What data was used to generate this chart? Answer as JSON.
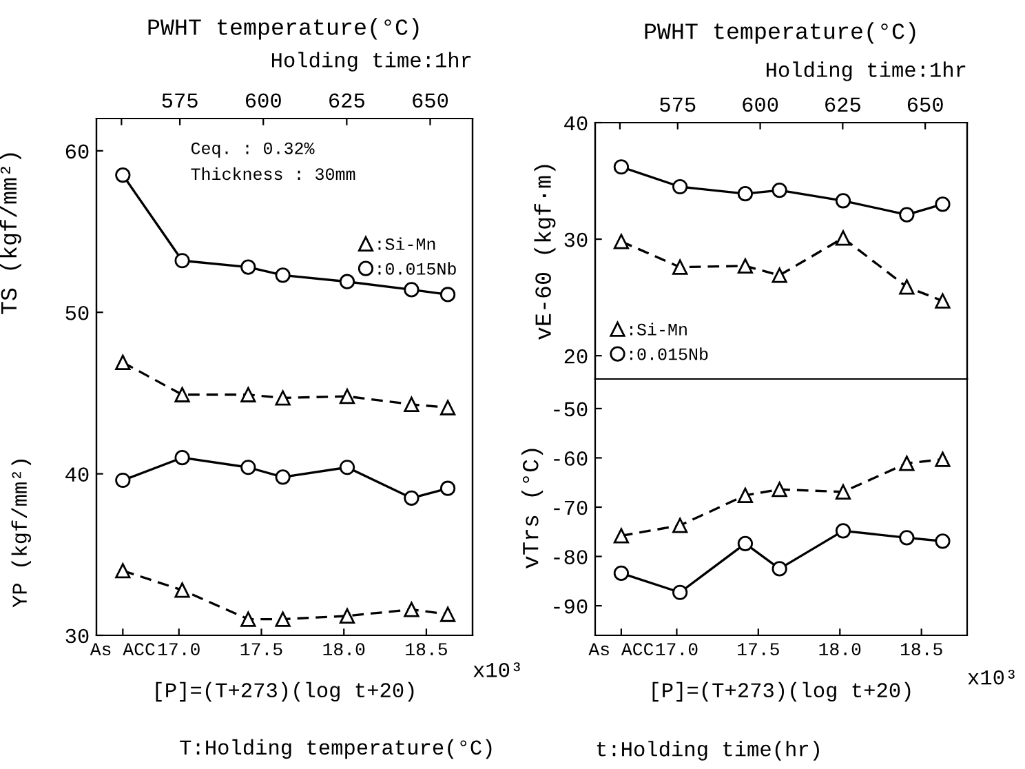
{
  "chart_data": [
    {
      "type": "line",
      "x": [
        16.66,
        17.02,
        17.42,
        17.63,
        18.02,
        18.41,
        18.63
      ],
      "xlim": [
        16.5,
        18.78
      ],
      "xticks": [
        {
          "value": 16.66,
          "label": "As ACC"
        },
        {
          "value": 17,
          "label": "17.0"
        },
        {
          "value": 17.5,
          "label": "17.5"
        },
        {
          "value": 18,
          "label": "18.0"
        },
        {
          "value": 18.5,
          "label": "18.5"
        }
      ],
      "x2lim": [
        550,
        662.7
      ],
      "x2ticks": [
        {
          "value": 557.5,
          "label": null
        },
        575,
        600,
        625,
        650
      ],
      "x2label": "PWHT temperature(°C)",
      "xlabel": "[P]=(T+273)(log t+20)",
      "ylabel": "TS (kgf/mm²)",
      "ylim": [
        30,
        62
      ],
      "yticks": [
        30,
        40,
        50,
        60
      ],
      "legend": "top right",
      "grid": false,
      "annotations": [
        "Ceq. : 0.32%",
        "Thickness : 30mm",
        "YP (kgf/mm²)",
        "Holding time:1hr",
        "x10³",
        "T:Holding temperature(°C)"
      ],
      "series": [
        {
          "name": ":Si-Mn",
          "color": "#000000",
          "marker": "triangle",
          "line_style": "dashed",
          "values": [
            46.9,
            44.9,
            44.9,
            44.7,
            44.8,
            44.3,
            44.1
          ]
        },
        {
          "name": ":0.015Nb",
          "color": "#000000",
          "marker": "circle",
          "line_style": "solid",
          "values": [
            58.5,
            53.2,
            52.8,
            52.3,
            51.9,
            51.4,
            51.1
          ]
        },
        {
          "color": "#000000",
          "marker": "circle",
          "line_style": "solid",
          "values": [
            39.6,
            41.0,
            40.4,
            39.8,
            40.4,
            38.5,
            39.1
          ]
        },
        {
          "color": "#000000",
          "marker": "triangle",
          "line_style": "dashed",
          "values": [
            34.0,
            32.8,
            31.0,
            31.0,
            31.2,
            31.6,
            31.3
          ]
        }
      ]
    },
    {
      "type": "line",
      "x": [
        16.66,
        17.02,
        17.42,
        17.63,
        18.02,
        18.41,
        18.63
      ],
      "xlim": [
        16.5,
        18.78
      ],
      "x2lim": [
        550,
        662.7
      ],
      "x2ticks": [
        {
          "value": 557.5,
          "label": null
        },
        575,
        600,
        625,
        650
      ],
      "x2label": "PWHT temperature(°C)",
      "ylabel": "vE-60 (kgf·m)",
      "ylim": [
        18,
        40
      ],
      "yticks": [
        20,
        30,
        40
      ],
      "tick_labels": "y",
      "legend": "bottom left",
      "grid": false,
      "annotations": [
        "Holding time:1hr"
      ],
      "series": [
        {
          "name": ":Si-Mn",
          "color": "#000000",
          "marker": "triangle",
          "line_style": "dashed",
          "values": [
            29.8,
            27.6,
            27.7,
            26.9,
            30.1,
            25.9,
            24.7
          ]
        },
        {
          "name": ":0.015Nb",
          "color": "#000000",
          "marker": "circle",
          "line_style": "solid",
          "values": [
            36.2,
            34.5,
            33.9,
            34.2,
            33.3,
            32.1,
            33.0
          ]
        }
      ]
    },
    {
      "type": "line",
      "x": [
        16.66,
        17.02,
        17.42,
        17.63,
        18.02,
        18.41,
        18.63
      ],
      "xlim": [
        16.5,
        18.78
      ],
      "xticks": [
        {
          "value": 16.66,
          "label": "As ACC"
        },
        {
          "value": 17,
          "label": "17.0"
        },
        {
          "value": 17.5,
          "label": "17.5"
        },
        {
          "value": 18,
          "label": "18.0"
        },
        {
          "value": 18.5,
          "label": "18.5"
        }
      ],
      "xlabel": "[P]=(T+273)(log t+20)",
      "ylabel": "vTrs (°C)",
      "ylim": [
        -96,
        -44
      ],
      "yticks": [
        -90,
        -80,
        -70,
        -60,
        -50
      ],
      "grid": false,
      "annotations": [
        "x10³",
        "t:Holding time(hr)"
      ],
      "series": [
        {
          "color": "#000000",
          "marker": "triangle",
          "line_style": "dashed",
          "values": [
            -75.8,
            -73.7,
            -67.6,
            -66.4,
            -66.9,
            -61.1,
            -60.3
          ]
        },
        {
          "color": "#000000",
          "marker": "circle",
          "line_style": "solid",
          "values": [
            -83.4,
            -87.3,
            -77.4,
            -82.5,
            -74.8,
            -76.2,
            -76.9
          ]
        }
      ]
    }
  ]
}
